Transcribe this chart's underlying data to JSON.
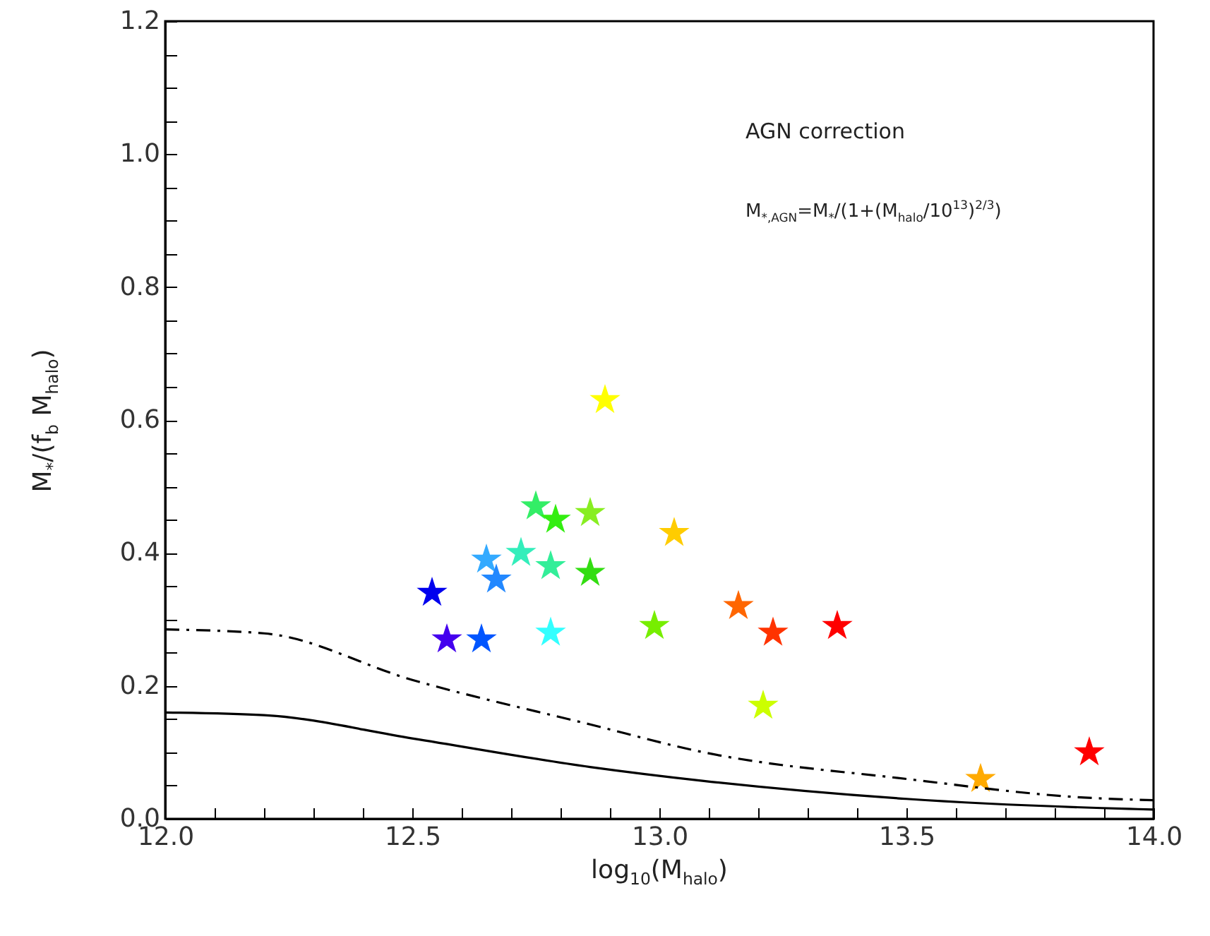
{
  "chart_data": {
    "type": "scatter",
    "xlabel": "log$_{10}$(M$_{halo}$)",
    "ylabel": "M$_{*}$/(f$_{b}$ M$_{halo}$)",
    "annotations": [
      "AGN correction",
      "M$_{*,AGN}$=M$_{*}$/(1+(M$_{halo}$/10$^{13}$)$^{2/3}$)"
    ],
    "xlim": [
      12.0,
      14.0
    ],
    "ylim": [
      0.0,
      1.2
    ],
    "xticks": [
      {
        "value": 12.0,
        "label": "12.0"
      },
      {
        "value": 12.1,
        "label": null
      },
      {
        "value": 12.2,
        "label": null
      },
      {
        "value": 12.3,
        "label": null
      },
      {
        "value": 12.4,
        "label": null
      },
      {
        "value": 12.5,
        "label": "12.5"
      },
      {
        "value": 12.6,
        "label": null
      },
      {
        "value": 12.7,
        "label": null
      },
      {
        "value": 12.8,
        "label": null
      },
      {
        "value": 12.9,
        "label": null
      },
      {
        "value": 13.0,
        "label": "13.0"
      },
      {
        "value": 13.1,
        "label": null
      },
      {
        "value": 13.2,
        "label": null
      },
      {
        "value": 13.3,
        "label": null
      },
      {
        "value": 13.4,
        "label": null
      },
      {
        "value": 13.5,
        "label": "13.5"
      },
      {
        "value": 13.6,
        "label": null
      },
      {
        "value": 13.7,
        "label": null
      },
      {
        "value": 13.8,
        "label": null
      },
      {
        "value": 13.9,
        "label": null
      },
      {
        "value": 14.0,
        "label": "14.0"
      }
    ],
    "yticks": [
      {
        "value": 0.0,
        "label": "0.0"
      },
      {
        "value": 0.05,
        "label": null
      },
      {
        "value": 0.1,
        "label": null
      },
      {
        "value": 0.15,
        "label": null
      },
      {
        "value": 0.2,
        "label": "0.2"
      },
      {
        "value": 0.25,
        "label": null
      },
      {
        "value": 0.3,
        "label": null
      },
      {
        "value": 0.35,
        "label": null
      },
      {
        "value": 0.4,
        "label": "0.4"
      },
      {
        "value": 0.45,
        "label": null
      },
      {
        "value": 0.5,
        "label": null
      },
      {
        "value": 0.55,
        "label": null
      },
      {
        "value": 0.6,
        "label": "0.6"
      },
      {
        "value": 0.65,
        "label": null
      },
      {
        "value": 0.7,
        "label": null
      },
      {
        "value": 0.75,
        "label": null
      },
      {
        "value": 0.8,
        "label": "0.8"
      },
      {
        "value": 0.85,
        "label": null
      },
      {
        "value": 0.9,
        "label": null
      },
      {
        "value": 0.95,
        "label": null
      },
      {
        "value": 1.0,
        "label": "1.0"
      },
      {
        "value": 1.05,
        "label": null
      },
      {
        "value": 1.1,
        "label": null
      },
      {
        "value": 1.15,
        "label": null
      },
      {
        "value": 1.2,
        "label": "1.2"
      }
    ],
    "series": [
      {
        "marker": "star",
        "x": [
          12.89,
          12.75,
          12.79,
          12.86,
          13.03,
          12.65,
          12.72,
          12.67,
          12.78,
          12.86,
          12.54,
          12.57,
          12.64,
          12.78,
          12.99,
          13.16,
          13.23,
          13.36,
          13.21,
          13.65,
          13.87
        ],
        "values": [
          0.63,
          0.47,
          0.45,
          0.46,
          0.43,
          0.39,
          0.4,
          0.36,
          0.38,
          0.37,
          0.34,
          0.27,
          0.27,
          0.28,
          0.29,
          0.32,
          0.28,
          0.29,
          0.17,
          0.06,
          0.1
        ],
        "colors": [
          "#ffff00",
          "#33ee66",
          "#33ee11",
          "#88ee22",
          "#ffcc00",
          "#33aaff",
          "#33eebb",
          "#2288ff",
          "#33ee99",
          "#33dd11",
          "#0000ee",
          "#4400ee",
          "#0055ff",
          "#33ffff",
          "#77ee00",
          "#ff6600",
          "#ff3300",
          "#ff0000",
          "#ccff00",
          "#ffaa00",
          "#ff0000"
        ]
      },
      {
        "type": "line",
        "color": "#000000",
        "line_style": "solid",
        "x": [
          12.0,
          12.2,
          12.5,
          12.86,
          13.09,
          13.5,
          13.95,
          14.0
        ],
        "values": [
          0.16,
          0.156,
          0.121,
          0.078,
          0.057,
          0.03,
          0.015,
          0.014
        ]
      },
      {
        "type": "line",
        "color": "#000000",
        "line_style": "dashdot",
        "x": [
          12.0,
          12.2,
          12.5,
          12.86,
          13.09,
          13.5,
          13.86,
          14.0
        ],
        "values": [
          0.285,
          0.279,
          0.209,
          0.142,
          0.1,
          0.06,
          0.032,
          0.028
        ]
      }
    ]
  }
}
